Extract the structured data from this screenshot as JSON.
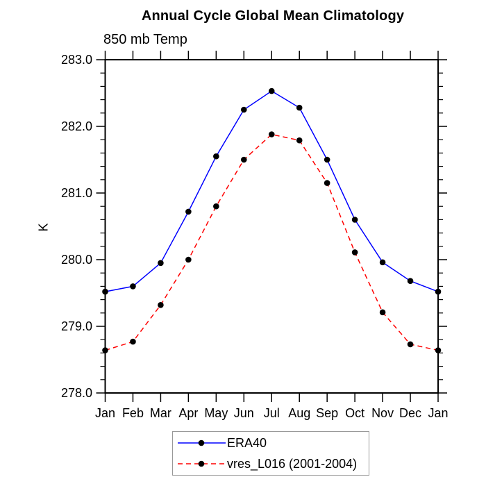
{
  "chart_data": {
    "type": "line",
    "title": "Annual Cycle Global Mean Climatology",
    "subtitle": "850 mb Temp",
    "ylabel": "K",
    "xlabel": "",
    "categories": [
      "Jan",
      "Feb",
      "Mar",
      "Apr",
      "May",
      "Jun",
      "Jul",
      "Aug",
      "Sep",
      "Oct",
      "Nov",
      "Dec",
      "Jan"
    ],
    "series": [
      {
        "name": "ERA40",
        "color": "#0000ff",
        "line_style": "solid",
        "marker": "filled-circle",
        "marker_color": "#000000",
        "values": [
          279.52,
          279.6,
          279.95,
          280.72,
          281.55,
          282.25,
          282.53,
          282.28,
          281.5,
          280.6,
          279.96,
          279.68,
          279.52
        ]
      },
      {
        "name": "vres_L016 (2001-2004)",
        "color": "#ff0000",
        "line_style": "dashed",
        "marker": "filled-circle",
        "marker_color": "#000000",
        "values": [
          278.64,
          278.77,
          279.32,
          280.0,
          280.8,
          281.5,
          281.88,
          281.79,
          281.15,
          280.11,
          279.21,
          278.73,
          278.64
        ]
      }
    ],
    "ylim": [
      278.0,
      283.0
    ],
    "ytick_major": [
      278.0,
      279.0,
      280.0,
      281.0,
      282.0,
      283.0
    ],
    "ytick_labels": [
      "278.0",
      "279.0",
      "280.0",
      "281.0",
      "282.0",
      "283.0"
    ],
    "ytick_minor_step": 0.2,
    "grid": false,
    "tick_direction": "out",
    "axis_color": "#000000",
    "legend_position": "bottom-center"
  }
}
